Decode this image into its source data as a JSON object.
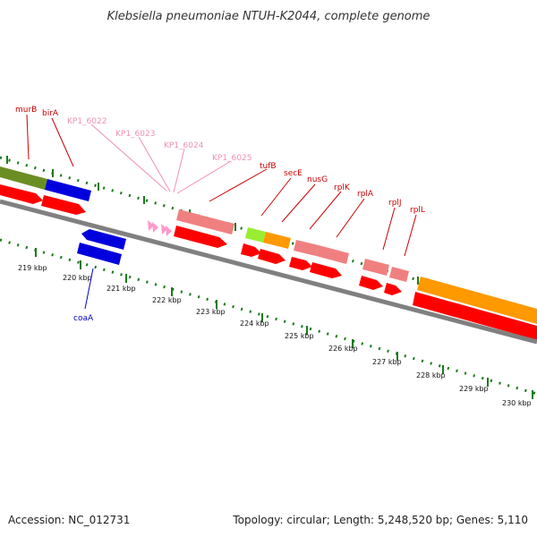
{
  "title": "Klebsiella pneumoniae NTUH-K2044, complete genome",
  "footer": {
    "accession": "Accession: NC_012731",
    "summary": "Topology: circular; Length: 5,248,520 bp; Genes: 5,110"
  },
  "colors": {
    "backbone": "#808080",
    "tick": "#1a7a1a",
    "cds": "#ff0000",
    "label_dark": "#cc0000",
    "label_light": "#f090b0",
    "label_blue": "#0000cc",
    "trna": "#ff99cc",
    "salmon": "#f08080",
    "orange": "#ff9900",
    "olive": "#6b8e23",
    "blue": "#0000dd",
    "lime": "#99ee33"
  },
  "axis": {
    "unit": "kbp",
    "ticks": [
      {
        "kbp": 219,
        "label": "219 kbp"
      },
      {
        "kbp": 220,
        "label": "220 kbp"
      },
      {
        "kbp": 221,
        "label": "221 kbp"
      },
      {
        "kbp": 222,
        "label": "222 kbp"
      },
      {
        "kbp": 223,
        "label": "223 kbp"
      },
      {
        "kbp": 224,
        "label": "224 kbp"
      },
      {
        "kbp": 225,
        "label": "225 kbp"
      },
      {
        "kbp": 226,
        "label": "226 kbp"
      },
      {
        "kbp": 227,
        "label": "227 kbp"
      },
      {
        "kbp": 228,
        "label": "228 kbp"
      },
      {
        "kbp": 229,
        "label": "229 kbp"
      },
      {
        "kbp": 230,
        "label": "230 kbp"
      }
    ]
  },
  "genes": [
    {
      "name": "murB",
      "color": "label_dark"
    },
    {
      "name": "birA",
      "color": "label_dark"
    },
    {
      "name": "KP1_6022",
      "color": "label_light"
    },
    {
      "name": "KP1_6023",
      "color": "label_light"
    },
    {
      "name": "KP1_6024",
      "color": "label_light"
    },
    {
      "name": "KP1_6025",
      "color": "label_light"
    },
    {
      "name": "tufB",
      "color": "label_dark"
    },
    {
      "name": "secE",
      "color": "label_dark"
    },
    {
      "name": "nusG",
      "color": "label_dark"
    },
    {
      "name": "rplK",
      "color": "label_dark"
    },
    {
      "name": "rplA",
      "color": "label_dark"
    },
    {
      "name": "rplJ",
      "color": "label_dark"
    },
    {
      "name": "rplL",
      "color": "label_dark"
    },
    {
      "name": "coaA",
      "color": "label_blue"
    }
  ]
}
